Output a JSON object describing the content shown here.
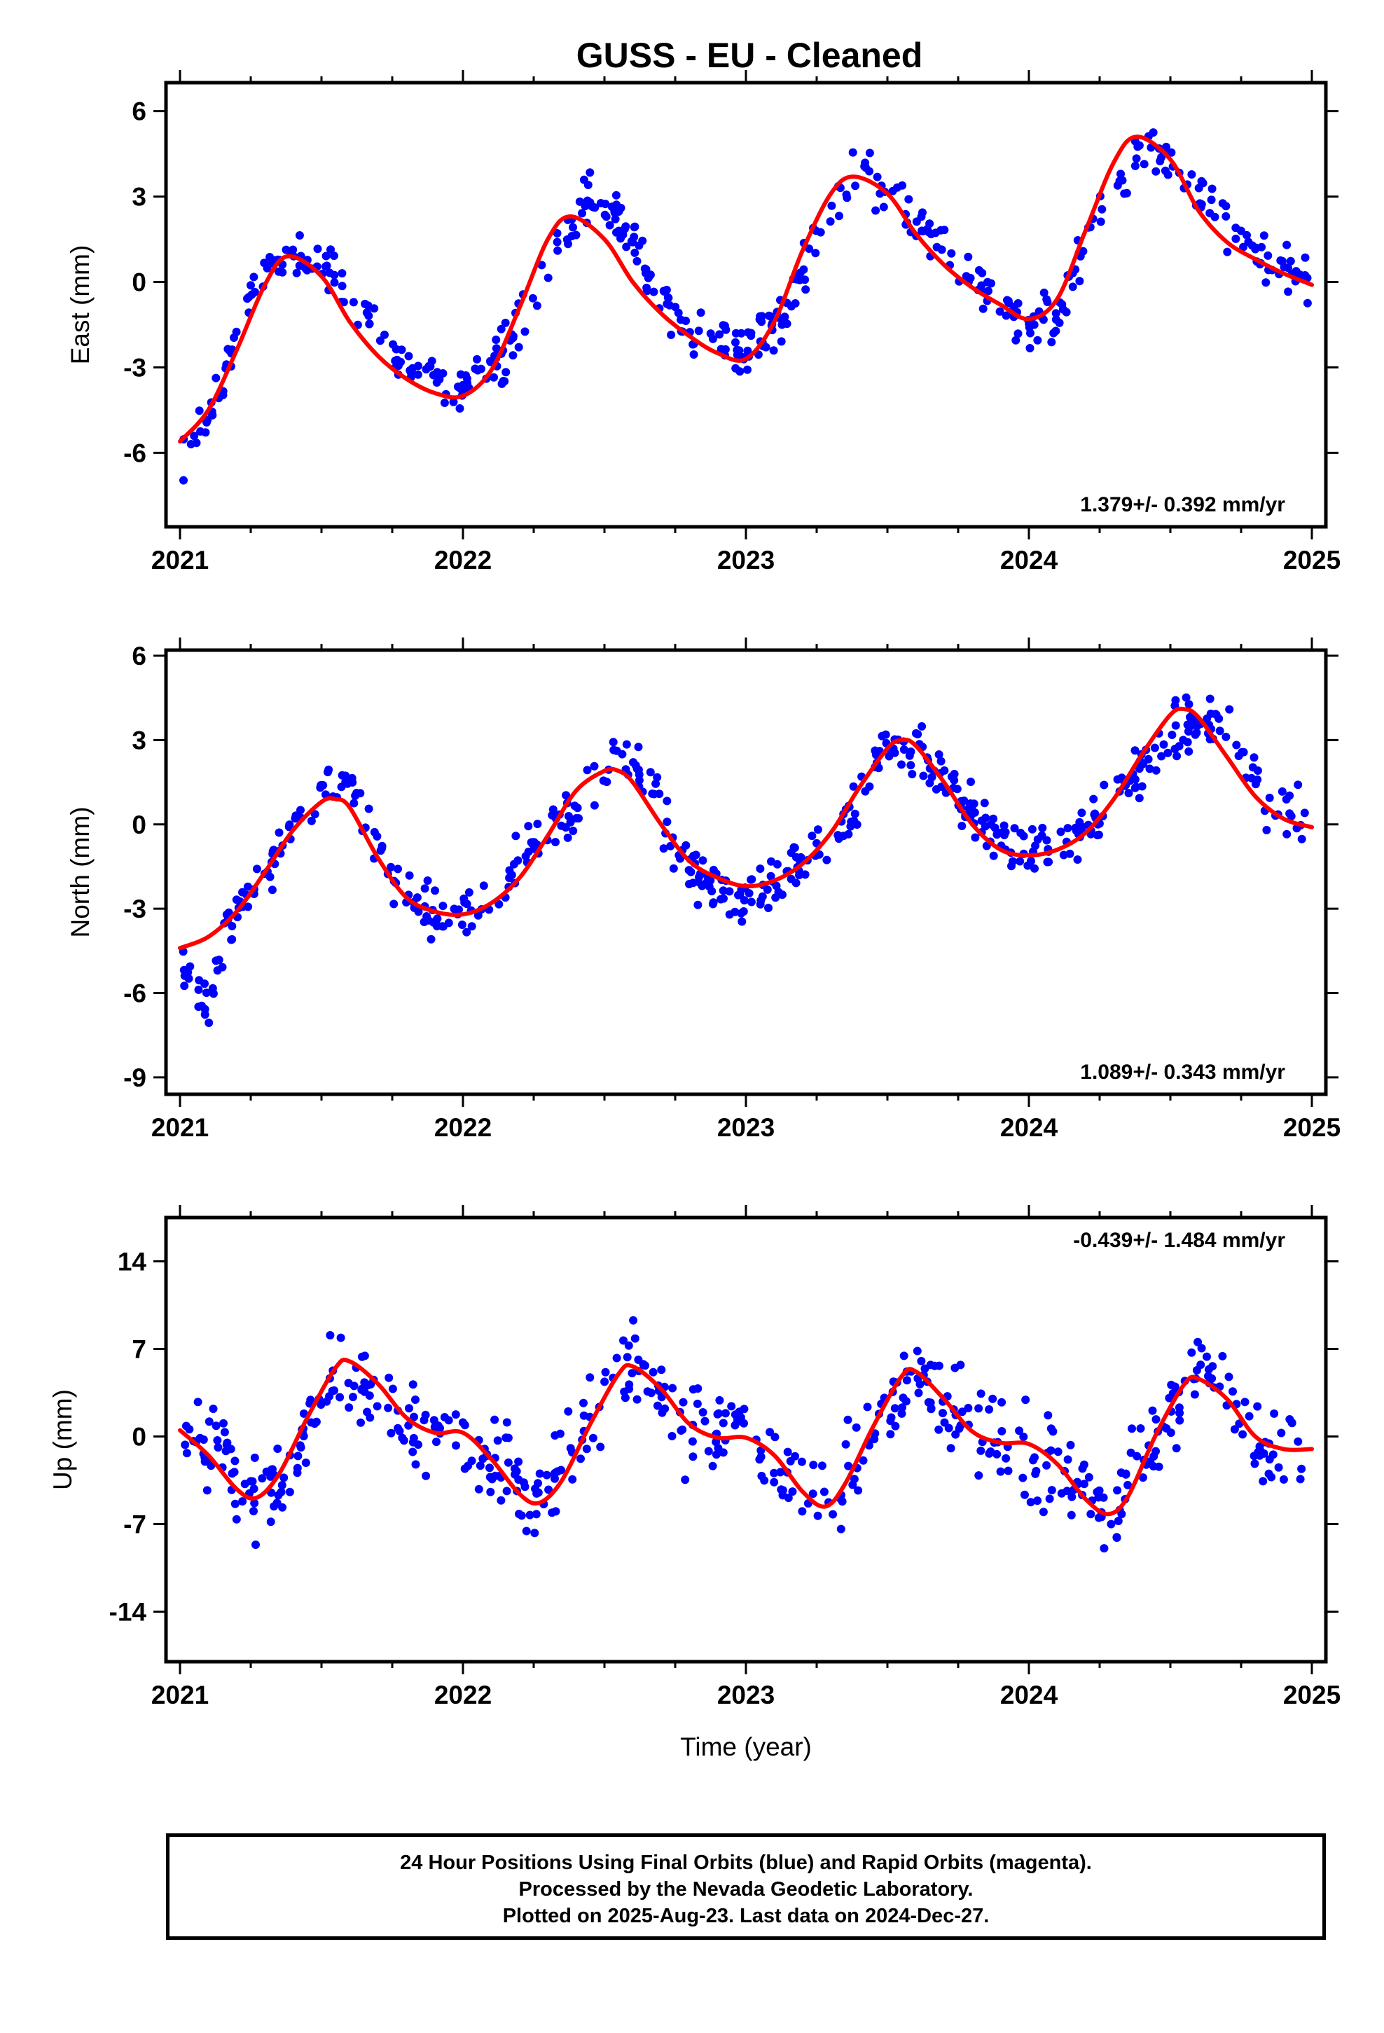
{
  "chart_title": "GUSS  - EU - Cleaned",
  "colors": {
    "data": "#0000ff",
    "fit": "#ff0000",
    "frame": "#000000"
  },
  "chart_data": [
    {
      "type": "scatter",
      "ylabel": "East (mm)",
      "xlabel": "",
      "xlim": [
        2021.0,
        2025.0
      ],
      "ylim": [
        -8.6,
        7.0
      ],
      "xticks": [
        2021,
        2022,
        2023,
        2024,
        2025
      ],
      "yticks": [
        6,
        3,
        0,
        -3,
        -6
      ],
      "rate_text": "1.379+/- 0.392 mm/yr",
      "rate_position": "bottom-right",
      "fit_curve": {
        "x": [
          2021.0,
          2021.1,
          2021.2,
          2021.3,
          2021.38,
          2021.5,
          2021.6,
          2021.7,
          2021.8,
          2021.9,
          2022.0,
          2022.1,
          2022.2,
          2022.3,
          2022.38,
          2022.5,
          2022.6,
          2022.7,
          2022.8,
          2022.9,
          2023.0,
          2023.1,
          2023.2,
          2023.3,
          2023.38,
          2023.5,
          2023.6,
          2023.7,
          2023.8,
          2023.9,
          2024.0,
          2024.1,
          2024.2,
          2024.3,
          2024.38,
          2024.5,
          2024.6,
          2024.7,
          2024.8,
          2024.9,
          2025.0
        ],
        "y": [
          -5.6,
          -4.5,
          -2.4,
          -0.1,
          0.9,
          0.2,
          -1.4,
          -2.6,
          -3.4,
          -3.9,
          -4.0,
          -3.1,
          -0.9,
          1.5,
          2.3,
          1.5,
          0.0,
          -1.1,
          -1.9,
          -2.5,
          -2.7,
          -1.4,
          1.1,
          3.1,
          3.7,
          3.1,
          1.7,
          0.6,
          -0.2,
          -0.8,
          -1.3,
          -0.6,
          1.8,
          4.2,
          5.1,
          4.3,
          2.5,
          1.4,
          0.8,
          0.3,
          -0.1
        ]
      },
      "points_model": {
        "anchors": [
          [
            2021.0,
            -6.5
          ],
          [
            2021.15,
            -3.6
          ],
          [
            2021.25,
            -0.2
          ],
          [
            2021.38,
            0.9
          ],
          [
            2021.55,
            0.4
          ],
          [
            2021.65,
            -1.0
          ],
          [
            2021.8,
            -3.0
          ],
          [
            2022.0,
            -3.6
          ],
          [
            2022.15,
            -2.5
          ],
          [
            2022.3,
            0.6
          ],
          [
            2022.45,
            3.0
          ],
          [
            2022.55,
            2.2
          ],
          [
            2022.7,
            -0.4
          ],
          [
            2022.8,
            -1.8
          ],
          [
            2023.0,
            -2.6
          ],
          [
            2023.12,
            -1.5
          ],
          [
            2023.3,
            2.5
          ],
          [
            2023.42,
            3.8
          ],
          [
            2023.55,
            2.6
          ],
          [
            2023.8,
            0.0
          ],
          [
            2024.0,
            -1.6
          ],
          [
            2024.1,
            -1.2
          ],
          [
            2024.25,
            2.4
          ],
          [
            2024.42,
            5.0
          ],
          [
            2024.6,
            3.0
          ],
          [
            2024.8,
            1.0
          ],
          [
            2025.0,
            0.0
          ]
        ],
        "scatter": 0.9,
        "count": 520,
        "seed": 11
      }
    },
    {
      "type": "scatter",
      "ylabel": "North (mm)",
      "xlabel": "",
      "xlim": [
        2021.0,
        2025.0
      ],
      "ylim": [
        -9.6,
        6.2
      ],
      "xticks": [
        2021,
        2022,
        2023,
        2024,
        2025
      ],
      "yticks": [
        6,
        3,
        0,
        -3,
        -6,
        -9
      ],
      "rate_text": "1.089+/- 0.343 mm/yr",
      "rate_position": "bottom-right",
      "fit_curve": {
        "x": [
          2021.0,
          2021.1,
          2021.2,
          2021.3,
          2021.4,
          2021.5,
          2021.55,
          2021.6,
          2021.7,
          2021.8,
          2021.9,
          2022.0,
          2022.1,
          2022.2,
          2022.3,
          2022.4,
          2022.5,
          2022.55,
          2022.6,
          2022.7,
          2022.8,
          2022.9,
          2023.0,
          2023.1,
          2023.2,
          2023.3,
          2023.4,
          2023.5,
          2023.55,
          2023.6,
          2023.7,
          2023.8,
          2023.9,
          2024.0,
          2024.1,
          2024.2,
          2024.3,
          2024.4,
          2024.5,
          2024.55,
          2024.6,
          2024.7,
          2024.8,
          2024.9,
          2025.0
        ],
        "y": [
          -4.4,
          -4.0,
          -3.1,
          -1.7,
          -0.2,
          0.8,
          0.9,
          0.6,
          -1.2,
          -2.6,
          -3.1,
          -3.2,
          -2.8,
          -1.9,
          -0.4,
          1.2,
          1.9,
          1.9,
          1.5,
          0.0,
          -1.3,
          -1.9,
          -2.2,
          -2.0,
          -1.4,
          -0.3,
          1.3,
          2.7,
          3.0,
          2.8,
          1.5,
          0.0,
          -0.9,
          -1.1,
          -0.9,
          -0.3,
          0.9,
          2.5,
          3.9,
          4.1,
          3.8,
          2.4,
          1.0,
          0.2,
          -0.1
        ]
      },
      "points_model": {
        "anchors": [
          [
            2021.0,
            -5.5
          ],
          [
            2021.1,
            -6.2
          ],
          [
            2021.2,
            -3.0
          ],
          [
            2021.35,
            -1.0
          ],
          [
            2021.5,
            1.3
          ],
          [
            2021.6,
            1.6
          ],
          [
            2021.75,
            -2.0
          ],
          [
            2021.9,
            -3.2
          ],
          [
            2022.1,
            -2.7
          ],
          [
            2022.25,
            -0.8
          ],
          [
            2022.4,
            0.6
          ],
          [
            2022.55,
            3.0
          ],
          [
            2022.65,
            1.5
          ],
          [
            2022.8,
            -1.8
          ],
          [
            2023.0,
            -2.6
          ],
          [
            2023.2,
            -1.5
          ],
          [
            2023.35,
            0.0
          ],
          [
            2023.5,
            3.0
          ],
          [
            2023.6,
            2.8
          ],
          [
            2023.8,
            0.3
          ],
          [
            2024.0,
            -1.1
          ],
          [
            2024.2,
            -0.2
          ],
          [
            2024.4,
            2.2
          ],
          [
            2024.55,
            3.6
          ],
          [
            2024.7,
            3.5
          ],
          [
            2024.85,
            0.5
          ],
          [
            2025.0,
            0.4
          ]
        ],
        "scatter": 0.9,
        "count": 560,
        "seed": 23
      }
    },
    {
      "type": "scatter",
      "ylabel": "Up (mm)",
      "xlabel": "Time (year)",
      "xlim": [
        2021.0,
        2025.0
      ],
      "ylim": [
        -18.0,
        17.5
      ],
      "xticks": [
        2021,
        2022,
        2023,
        2024,
        2025
      ],
      "yticks": [
        14,
        7,
        0,
        -7,
        -14
      ],
      "rate_text": "-0.439+/- 1.484 mm/yr",
      "rate_position": "top-right",
      "fit_curve": {
        "x": [
          2021.0,
          2021.1,
          2021.2,
          2021.27,
          2021.35,
          2021.45,
          2021.55,
          2021.6,
          2021.7,
          2021.8,
          2021.9,
          2022.0,
          2022.1,
          2022.2,
          2022.27,
          2022.35,
          2022.45,
          2022.55,
          2022.6,
          2022.7,
          2022.8,
          2022.9,
          2023.0,
          2023.1,
          2023.2,
          2023.28,
          2023.35,
          2023.45,
          2023.55,
          2023.6,
          2023.7,
          2023.8,
          2023.9,
          2024.0,
          2024.1,
          2024.2,
          2024.28,
          2024.35,
          2024.45,
          2024.55,
          2024.6,
          2024.7,
          2024.8,
          2024.9,
          2025.0
        ],
        "y": [
          0.5,
          -1.5,
          -4.2,
          -4.9,
          -3.0,
          1.5,
          5.5,
          6.0,
          4.2,
          1.5,
          0.3,
          0.3,
          -1.8,
          -4.6,
          -5.3,
          -3.5,
          1.0,
          5.0,
          5.6,
          3.8,
          1.0,
          -0.1,
          -0.1,
          -1.5,
          -4.4,
          -5.6,
          -3.8,
          0.8,
          4.8,
          5.2,
          3.0,
          0.4,
          -0.5,
          -0.6,
          -2.2,
          -5.0,
          -6.2,
          -4.8,
          0.2,
          4.2,
          4.6,
          3.0,
          0.0,
          -1.0,
          -1.0
        ]
      },
      "points_model": {
        "anchors": [
          [
            2021.0,
            1.5
          ],
          [
            2021.27,
            -5.0
          ],
          [
            2021.45,
            0.5
          ],
          [
            2021.55,
            6.0
          ],
          [
            2021.8,
            0.5
          ],
          [
            2022.0,
            0.0
          ],
          [
            2022.25,
            -5.5
          ],
          [
            2022.45,
            1.5
          ],
          [
            2022.58,
            6.5
          ],
          [
            2022.8,
            0.5
          ],
          [
            2023.0,
            0.0
          ],
          [
            2023.28,
            -5.5
          ],
          [
            2023.45,
            0.5
          ],
          [
            2023.6,
            5.0
          ],
          [
            2023.85,
            0.0
          ],
          [
            2024.1,
            -3.0
          ],
          [
            2024.3,
            -6.0
          ],
          [
            2024.45,
            0.0
          ],
          [
            2024.6,
            6.0
          ],
          [
            2024.85,
            -1.5
          ],
          [
            2025.0,
            -1.0
          ]
        ],
        "scatter": 3.6,
        "count": 560,
        "seed": 37
      }
    }
  ],
  "footer": {
    "line1": "24 Hour Positions Using Final Orbits (blue) and Rapid Orbits (magenta).",
    "line2": "Processed by the Nevada Geodetic Laboratory.",
    "line3": "Plotted on 2025-Aug-23. Last data on 2024-Dec-27."
  }
}
